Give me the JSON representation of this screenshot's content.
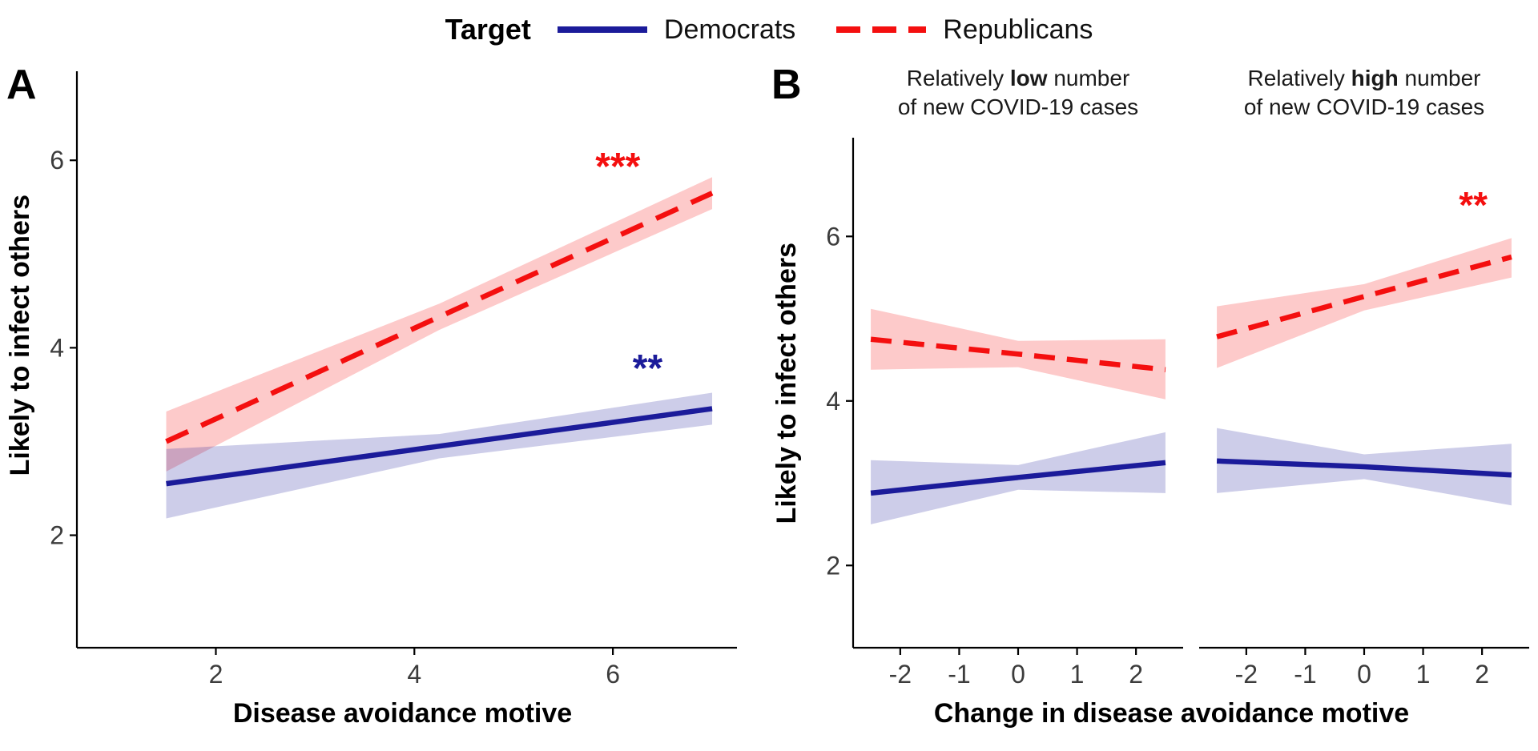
{
  "colors": {
    "democrats": "#1b1b9a",
    "republicans": "#f40f0f",
    "axis": "#000000",
    "tick_label": "#3c3c3c"
  },
  "legend": {
    "title": "Target",
    "items": [
      {
        "label": "Democrats",
        "style": "solid"
      },
      {
        "label": "Republicans",
        "style": "dashed"
      }
    ]
  },
  "panel_a": {
    "tag": "A",
    "xlabel": "Disease avoidance motive",
    "ylabel": "Likely to infect others"
  },
  "panel_b": {
    "tag": "B",
    "xlabel": "Change in disease avoidance motive",
    "ylabel": "Likely to infect others",
    "facet_titles": [
      {
        "prefix": "Relatively ",
        "emph": "low",
        "suffix": " number",
        "line2": "of new COVID-19 cases"
      },
      {
        "prefix": "Relatively ",
        "emph": "high",
        "suffix": " number",
        "line2": "of new COVID-19 cases"
      }
    ]
  },
  "chart_data": [
    {
      "id": "panel-a",
      "type": "line",
      "title": "",
      "xlabel": "Disease avoidance motive",
      "ylabel": "Likely to infect others",
      "xlim": [
        0.6,
        7.25
      ],
      "ylim": [
        0.8,
        6.95
      ],
      "xticks": [
        2,
        4,
        6
      ],
      "yticks": [
        2,
        4,
        6
      ],
      "grid": false,
      "legend_position": "top",
      "facets": [
        {
          "title": "",
          "series": [
            {
              "name": "Republicans",
              "color": "#f40f0f",
              "style": "dashed",
              "x": [
                1.5,
                4.25,
                7.0
              ],
              "y": [
                3.0,
                4.33,
                5.65
              ],
              "ci_upper": [
                3.32,
                4.47,
                5.82
              ],
              "ci_lower": [
                2.68,
                4.19,
                5.48
              ],
              "significance": {
                "text": "***",
                "x": 6.05,
                "y": 5.95
              }
            },
            {
              "name": "Democrats",
              "color": "#1b1b9a",
              "style": "solid",
              "x": [
                1.5,
                4.25,
                7.0
              ],
              "y": [
                2.55,
                2.95,
                3.35
              ],
              "ci_upper": [
                2.92,
                3.08,
                3.52
              ],
              "ci_lower": [
                2.18,
                2.82,
                3.18
              ],
              "significance": {
                "text": "**",
                "x": 6.35,
                "y": 3.8
              }
            }
          ]
        }
      ]
    },
    {
      "id": "panel-b",
      "type": "line",
      "title": "",
      "xlabel": "Change in disease avoidance motive",
      "ylabel": "Likely to infect others",
      "xlim": [
        -2.8,
        2.8
      ],
      "ylim": [
        1.0,
        7.2
      ],
      "xticks": [
        -2,
        -1,
        0,
        1,
        2
      ],
      "yticks": [
        2,
        4,
        6
      ],
      "grid": false,
      "legend_position": "top",
      "facets": [
        {
          "title": "Relatively low number of new COVID-19 cases",
          "series": [
            {
              "name": "Republicans",
              "color": "#f40f0f",
              "style": "dashed",
              "x": [
                -2.5,
                0,
                2.5
              ],
              "y": [
                4.75,
                4.57,
                4.38
              ],
              "ci_upper": [
                5.12,
                4.73,
                4.75
              ],
              "ci_lower": [
                4.38,
                4.41,
                4.02
              ]
            },
            {
              "name": "Democrats",
              "color": "#1b1b9a",
              "style": "solid",
              "x": [
                -2.5,
                0,
                2.5
              ],
              "y": [
                2.88,
                3.07,
                3.25
              ],
              "ci_upper": [
                3.28,
                3.22,
                3.62
              ],
              "ci_lower": [
                2.5,
                2.92,
                2.88
              ]
            }
          ]
        },
        {
          "title": "Relatively high number of new COVID-19 cases",
          "series": [
            {
              "name": "Republicans",
              "color": "#f40f0f",
              "style": "dashed",
              "x": [
                -2.5,
                0,
                2.5
              ],
              "y": [
                4.78,
                5.27,
                5.75
              ],
              "ci_upper": [
                5.15,
                5.42,
                5.98
              ],
              "ci_lower": [
                4.4,
                5.1,
                5.5
              ],
              "significance": {
                "text": "**",
                "x": 1.85,
                "y": 6.4
              }
            },
            {
              "name": "Democrats",
              "color": "#1b1b9a",
              "style": "solid",
              "x": [
                -2.5,
                0,
                2.5
              ],
              "y": [
                3.27,
                3.2,
                3.1
              ],
              "ci_upper": [
                3.67,
                3.35,
                3.48
              ],
              "ci_lower": [
                2.88,
                3.05,
                2.73
              ]
            }
          ]
        }
      ]
    }
  ]
}
